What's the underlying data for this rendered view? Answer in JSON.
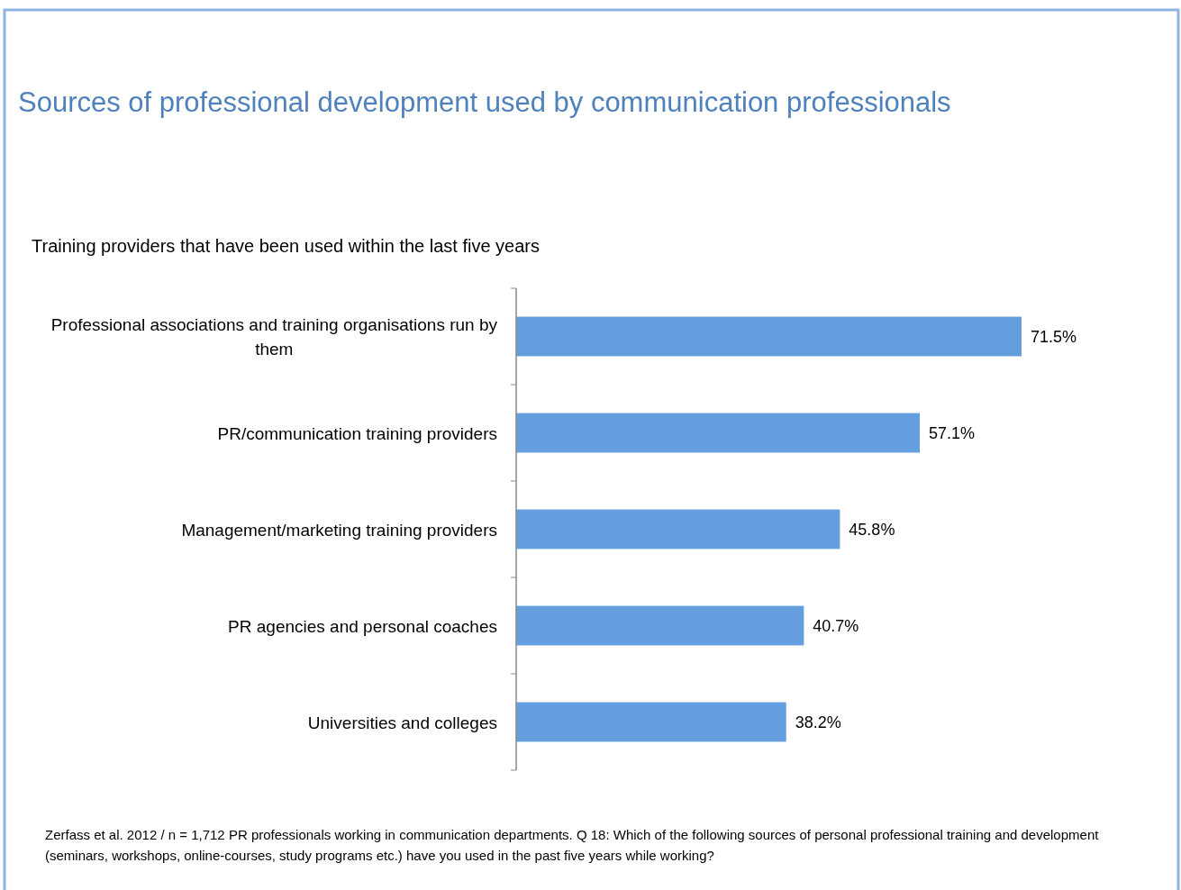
{
  "chart_data": {
    "type": "bar",
    "orientation": "horizontal",
    "title": "Sources of professional development used by communication professionals",
    "subtitle": "Training providers that have been used within the last five years",
    "categories": [
      "Professional associations and training organisations run by them",
      "PR/communication training providers",
      "Management/marketing training providers",
      "PR agencies and personal coaches",
      "Universities and colleges"
    ],
    "values": [
      71.5,
      57.1,
      45.8,
      40.7,
      38.2
    ],
    "value_labels": [
      "71.5%",
      "57.1%",
      "45.8%",
      "40.7%",
      "38.2%"
    ],
    "color": "#659ede",
    "tick_labels": "y",
    "annotations": [
      "Zerfass et al. 2012 / n = 1,712 PR professionals working in communication departments. Q 18: Which of the following sources of personal professional training and development (seminars, workshops, online-courses, study programs etc.) have you used in the past five years while working?"
    ]
  }
}
